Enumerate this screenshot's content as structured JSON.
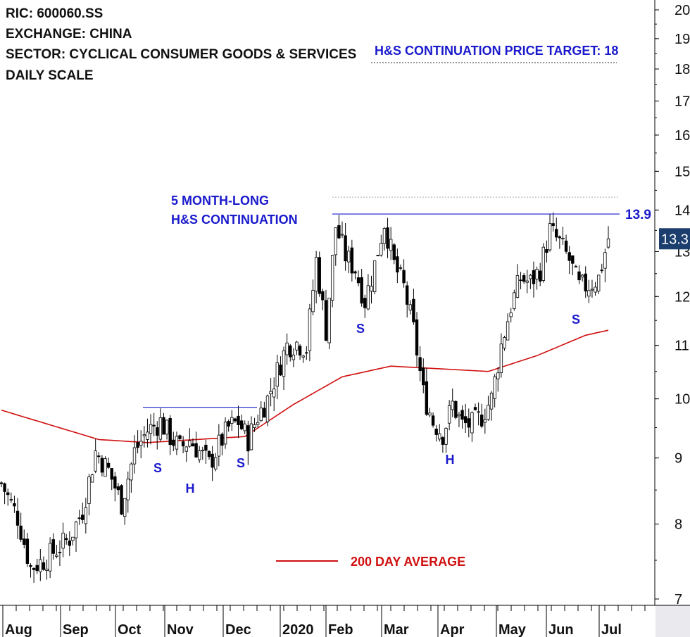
{
  "header": {
    "ric": "RIC: 600060.SS",
    "exchange": "EXCHANGE: CHINA",
    "sector": "SECTOR: CYCLICAL CONSUMER GOODS & SERVICES",
    "scale": "DAILY SCALE"
  },
  "colors": {
    "accent_blue": "#1a1acc",
    "moving_average_red": "#d01010",
    "price_badge": "#1c3e6e",
    "candles": "#000000"
  },
  "chart_data": {
    "type": "candlestick",
    "y_scale": "log",
    "ylim": [
      6.9,
      20.3
    ],
    "y_ticks": [
      7,
      8,
      9,
      10,
      11,
      12,
      13,
      14,
      15,
      16,
      17,
      18,
      19,
      20
    ],
    "x_ticks": [
      "Aug",
      "Sep",
      "Oct",
      "Nov",
      "Dec",
      "2020",
      "Feb",
      "Mar",
      "Apr",
      "May",
      "Jun",
      "Jul"
    ],
    "last_price_label": "13.3",
    "last_price": 13.3,
    "target_label": "H&S CONTINUATION PRICE TARGET: 18",
    "neckline_label": "13.9",
    "neckline_value": 13.9,
    "prior_neckline_value": 9.85,
    "pattern_label": [
      "5 MONTH-LONG",
      "H&S CONTINUATION"
    ],
    "legend": "200 DAY AVERAGE",
    "pattern_markers": [
      {
        "text": "S",
        "date": "Oct",
        "value": 8.85
      },
      {
        "text": "H",
        "date": "Nov",
        "value": 8.45
      },
      {
        "text": "S",
        "date": "Dec",
        "value": 8.95
      },
      {
        "text": "S",
        "date": "Feb",
        "value": 11.25
      },
      {
        "text": "H",
        "date": "Apr",
        "value": 8.95
      },
      {
        "text": "S",
        "date": "Jun",
        "value": 11.6
      }
    ],
    "price_path": [
      [
        0,
        8.6
      ],
      [
        5,
        8.1
      ],
      [
        9,
        7.4
      ],
      [
        13,
        7.5
      ],
      [
        17,
        7.65
      ],
      [
        21,
        7.8
      ],
      [
        25,
        8.2
      ],
      [
        29,
        9.1
      ],
      [
        33,
        8.8
      ],
      [
        37,
        8.3
      ],
      [
        41,
        9.1
      ],
      [
        45,
        9.45
      ],
      [
        49,
        9.6
      ],
      [
        52,
        9.35
      ],
      [
        55,
        9.15
      ],
      [
        58,
        9.3
      ],
      [
        61,
        9.1
      ],
      [
        64,
        8.9
      ],
      [
        67,
        9.2
      ],
      [
        70,
        9.5
      ],
      [
        73,
        9.6
      ],
      [
        76,
        9.3
      ],
      [
        79,
        9.7
      ],
      [
        82,
        10.0
      ],
      [
        85,
        10.5
      ],
      [
        88,
        11.0
      ],
      [
        91,
        11.05
      ],
      [
        94,
        10.95
      ],
      [
        97,
        12.8
      ],
      [
        100,
        11.3
      ],
      [
        103,
        13.6
      ],
      [
        106,
        12.9
      ],
      [
        109,
        12.6
      ],
      [
        112,
        11.9
      ],
      [
        115,
        12.7
      ],
      [
        118,
        13.7
      ],
      [
        121,
        12.7
      ],
      [
        124,
        12.2
      ],
      [
        127,
        11.3
      ],
      [
        130,
        10.1
      ],
      [
        133,
        9.6
      ],
      [
        136,
        9.4
      ],
      [
        139,
        9.9
      ],
      [
        142,
        9.55
      ],
      [
        145,
        9.55
      ],
      [
        148,
        9.7
      ],
      [
        151,
        10.0
      ],
      [
        154,
        11.0
      ],
      [
        157,
        11.8
      ],
      [
        160,
        12.4
      ],
      [
        163,
        12.3
      ],
      [
        166,
        12.6
      ],
      [
        169,
        13.5
      ],
      [
        172,
        13.2
      ],
      [
        175,
        12.8
      ],
      [
        178,
        12.2
      ],
      [
        181,
        12.25
      ],
      [
        184,
        12.4
      ],
      [
        187,
        13.3
      ]
    ],
    "moving_average_200d": [
      [
        0,
        9.8
      ],
      [
        30,
        9.3
      ],
      [
        45,
        9.25
      ],
      [
        60,
        9.3
      ],
      [
        75,
        9.35
      ],
      [
        90,
        9.9
      ],
      [
        105,
        10.4
      ],
      [
        120,
        10.6
      ],
      [
        135,
        10.55
      ],
      [
        150,
        10.5
      ],
      [
        165,
        10.8
      ],
      [
        180,
        11.2
      ],
      [
        187,
        11.3
      ]
    ]
  }
}
